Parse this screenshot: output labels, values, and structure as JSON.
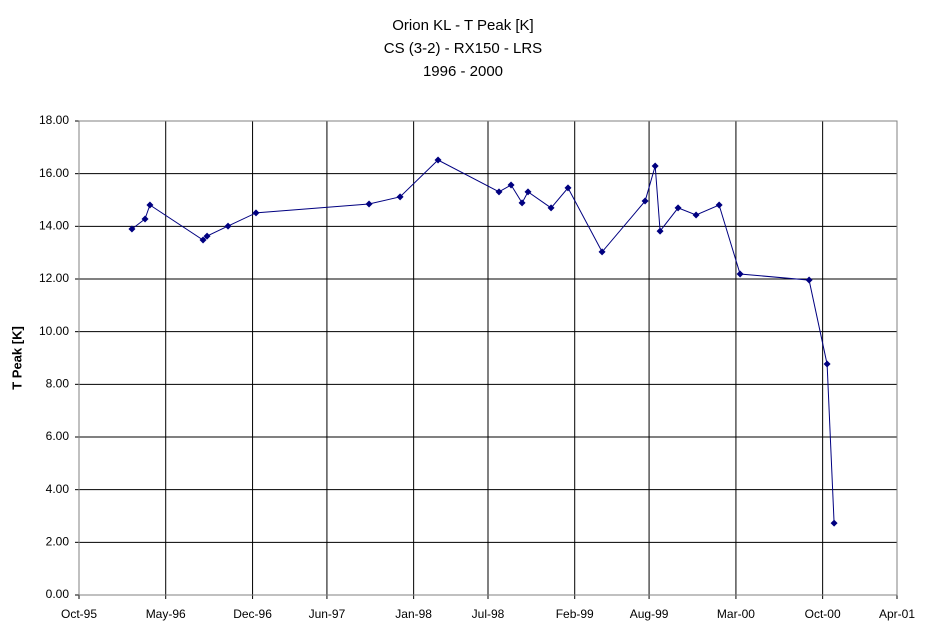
{
  "chart_data": {
    "type": "line",
    "title": [
      "Orion KL - T Peak [K]",
      "CS (3-2) - RX150 - LRS",
      "1996 - 2000"
    ],
    "ylabel": "T Peak [K]",
    "x": [
      1996.106,
      1996.194,
      1996.227,
      1996.584,
      1996.611,
      1996.752,
      1996.94,
      1997.7,
      1997.909,
      1998.164,
      1998.574,
      1998.655,
      1998.729,
      1998.769,
      1998.924,
      1999.038,
      1999.267,
      1999.556,
      1999.624,
      1999.657,
      1999.778,
      1999.899,
      2000.054,
      2000.195,
      2000.659,
      2000.78,
      2000.827
    ],
    "series": [
      {
        "color": "#000080",
        "values": [
          13.9,
          14.28,
          14.81,
          13.48,
          13.63,
          14.01,
          14.51,
          14.85,
          15.12,
          16.52,
          15.31,
          15.57,
          14.89,
          15.31,
          14.7,
          15.46,
          13.03,
          14.96,
          16.29,
          13.82,
          14.7,
          14.43,
          14.81,
          12.19,
          11.96,
          8.77,
          2.73
        ]
      }
    ],
    "xlim": [
      1995.75,
      2001.25
    ],
    "xticks": [
      {
        "value": 1995.75,
        "label": "Oct-95"
      },
      {
        "value": 1996.333,
        "label": "May-96"
      },
      {
        "value": 1996.917,
        "label": "Dec-96"
      },
      {
        "value": 1997.417,
        "label": "Jun-97"
      },
      {
        "value": 1998.0,
        "label": "Jan-98"
      },
      {
        "value": 1998.5,
        "label": "Jul-98"
      },
      {
        "value": 1999.083,
        "label": "Feb-99"
      },
      {
        "value": 1999.583,
        "label": "Aug-99"
      },
      {
        "value": 2000.167,
        "label": "Mar-00"
      },
      {
        "value": 2000.75,
        "label": "Oct-00"
      },
      {
        "value": 2001.25,
        "label": "Apr-01"
      }
    ],
    "ylim": [
      0,
      18
    ],
    "yticks": [
      {
        "value": 0,
        "label": "0.00"
      },
      {
        "value": 2,
        "label": "2.00"
      },
      {
        "value": 4,
        "label": "4.00"
      },
      {
        "value": 6,
        "label": "6.00"
      },
      {
        "value": 8,
        "label": "8.00"
      },
      {
        "value": 10,
        "label": "10.00"
      },
      {
        "value": 12,
        "label": "12.00"
      },
      {
        "value": 14,
        "label": "14.00"
      },
      {
        "value": 16,
        "label": "16.00"
      },
      {
        "value": 18,
        "label": "18.00"
      }
    ],
    "grid": true
  }
}
